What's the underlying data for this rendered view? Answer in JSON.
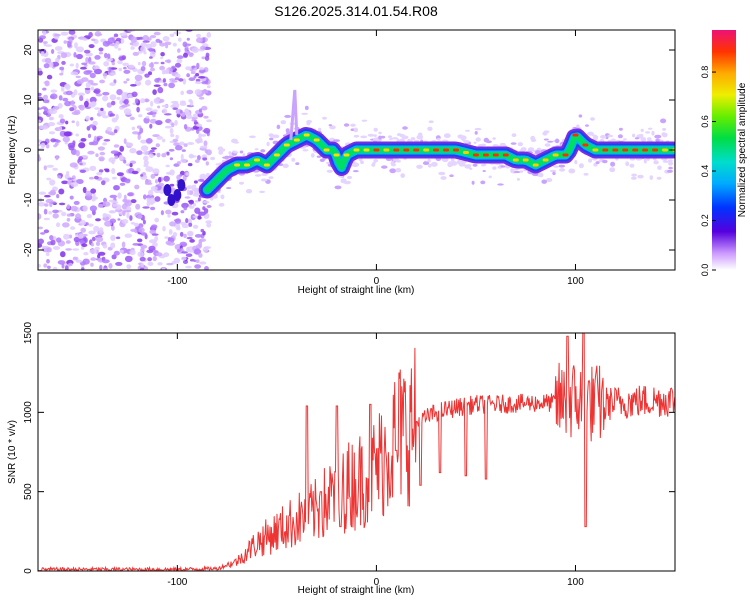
{
  "title": "S126.2025.314.01.54.R08",
  "colors": {
    "snr_line": "#ee3333",
    "spectrogram_core": "#ff2a00",
    "noise": "#7722dd"
  },
  "chart_data": [
    {
      "type": "heatmap",
      "name": "spectrogram",
      "xlabel": "Height of straight line (km)",
      "ylabel": "Frequency (Hz)",
      "xlim": [
        -170,
        150
      ],
      "ylim": [
        -24,
        24
      ],
      "xticks": [
        -100,
        0,
        100
      ],
      "yticks": [
        -20,
        -10,
        0,
        10,
        20
      ],
      "colorbar": {
        "label": "Normalized spectral amplitude",
        "range": [
          0,
          0.97
        ],
        "ticks": [
          0.0,
          0.2,
          0.4,
          0.6,
          0.8
        ]
      },
      "ridge": {
        "description": "dominant frequency track (Hz) vs height (km)",
        "x": [
          -85,
          -80,
          -75,
          -70,
          -65,
          -60,
          -55,
          -50,
          -45,
          -40,
          -35,
          -30,
          -25,
          -22,
          -20,
          -18,
          -15,
          -10,
          0,
          10,
          20,
          30,
          40,
          50,
          60,
          65,
          70,
          75,
          80,
          85,
          90,
          95,
          97,
          100,
          105,
          110,
          120,
          130,
          140,
          150
        ],
        "y": [
          -8,
          -6,
          -4,
          -3,
          -3,
          -2,
          -3,
          -1,
          1,
          2,
          3,
          2,
          0,
          0,
          -1,
          -4,
          -1,
          0,
          0,
          0,
          0,
          0,
          0,
          -1,
          -1,
          -1,
          -2,
          -2,
          -3,
          -2,
          -1,
          -1,
          0,
          3,
          1,
          0,
          0,
          0,
          0,
          0
        ]
      }
    },
    {
      "type": "line",
      "name": "snr",
      "xlabel": "Height of straight line (km)",
      "ylabel": "SNR (10 * v/v)",
      "xlim": [
        -170,
        150
      ],
      "ylim": [
        0,
        1500
      ],
      "xticks": [
        -100,
        0,
        100
      ],
      "yticks": [
        0,
        500,
        1000,
        1500
      ],
      "envelope": {
        "x": [
          -170,
          -100,
          -80,
          -70,
          -60,
          -50,
          -40,
          -30,
          -20,
          -10,
          0,
          10,
          20,
          30,
          40,
          50,
          60,
          80,
          90,
          100,
          110,
          120,
          130,
          150
        ],
        "y": [
          10,
          10,
          15,
          60,
          180,
          250,
          320,
          380,
          500,
          560,
          650,
          850,
          930,
          1000,
          1030,
          1050,
          1050,
          1060,
          1060,
          1080,
          1050,
          1060,
          1070,
          1080
        ]
      },
      "dips": [
        {
          "x": -28,
          "y": 500
        },
        {
          "x": -18,
          "y": 280
        },
        {
          "x": 10,
          "y": 760
        },
        {
          "x": 22,
          "y": 540
        },
        {
          "x": 32,
          "y": 620
        },
        {
          "x": 45,
          "y": 600
        },
        {
          "x": 55,
          "y": 580
        },
        {
          "x": 105,
          "y": 280
        }
      ],
      "spikes": [
        {
          "x": -35,
          "y": 1040
        },
        {
          "x": -20,
          "y": 1040
        },
        {
          "x": -3,
          "y": 1050
        },
        {
          "x": 96,
          "y": 1480
        },
        {
          "x": 104,
          "y": 1500
        }
      ]
    }
  ]
}
